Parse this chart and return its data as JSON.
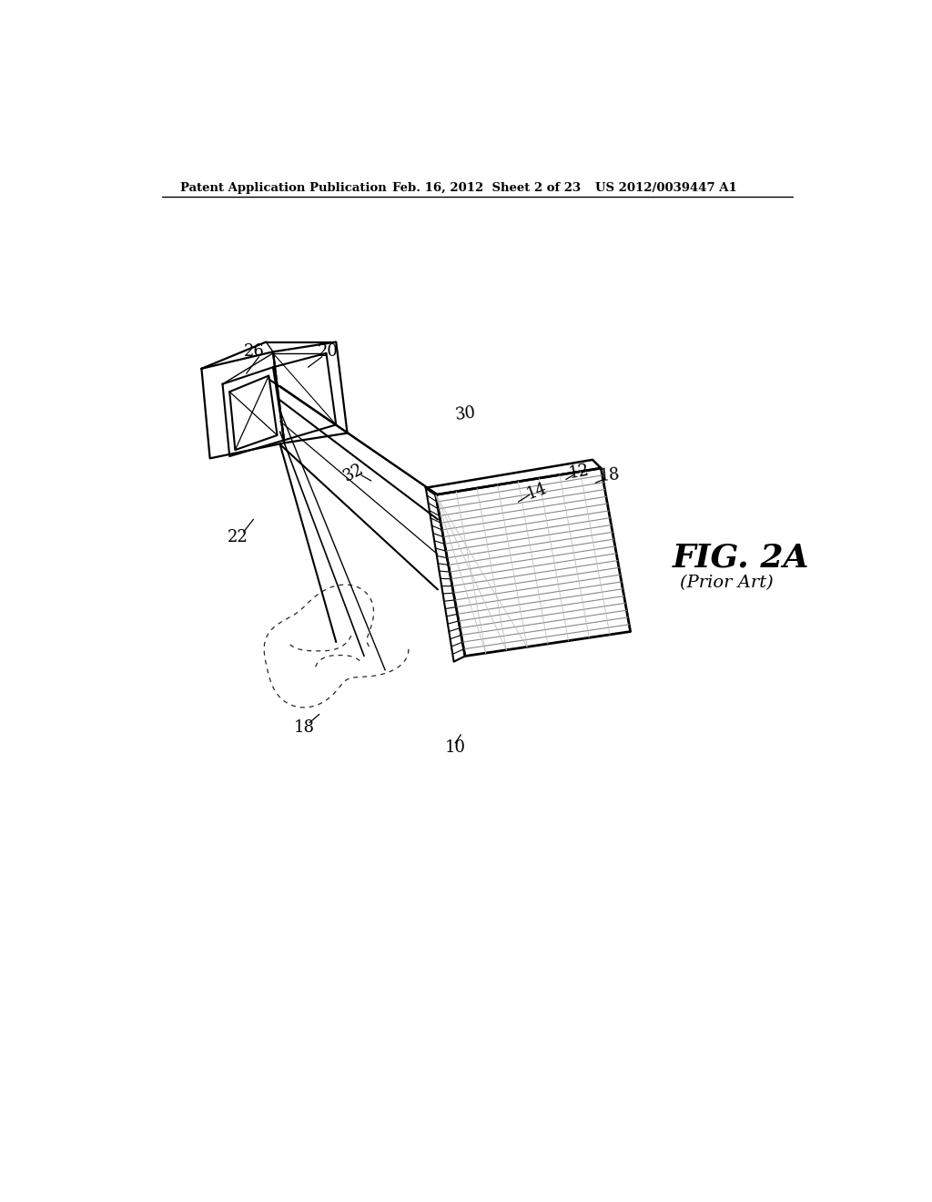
{
  "header_left": "Patent Application Publication",
  "header_mid": "Feb. 16, 2012  Sheet 2 of 23",
  "header_right": "US 2012/0039447 A1",
  "fig_label": "FIG. 2A",
  "fig_sublabel": "(Prior Art)",
  "bg_color": "#ffffff",
  "line_color": "#000000",
  "gray_color": "#888888",
  "light_gray": "#bbbbbb"
}
